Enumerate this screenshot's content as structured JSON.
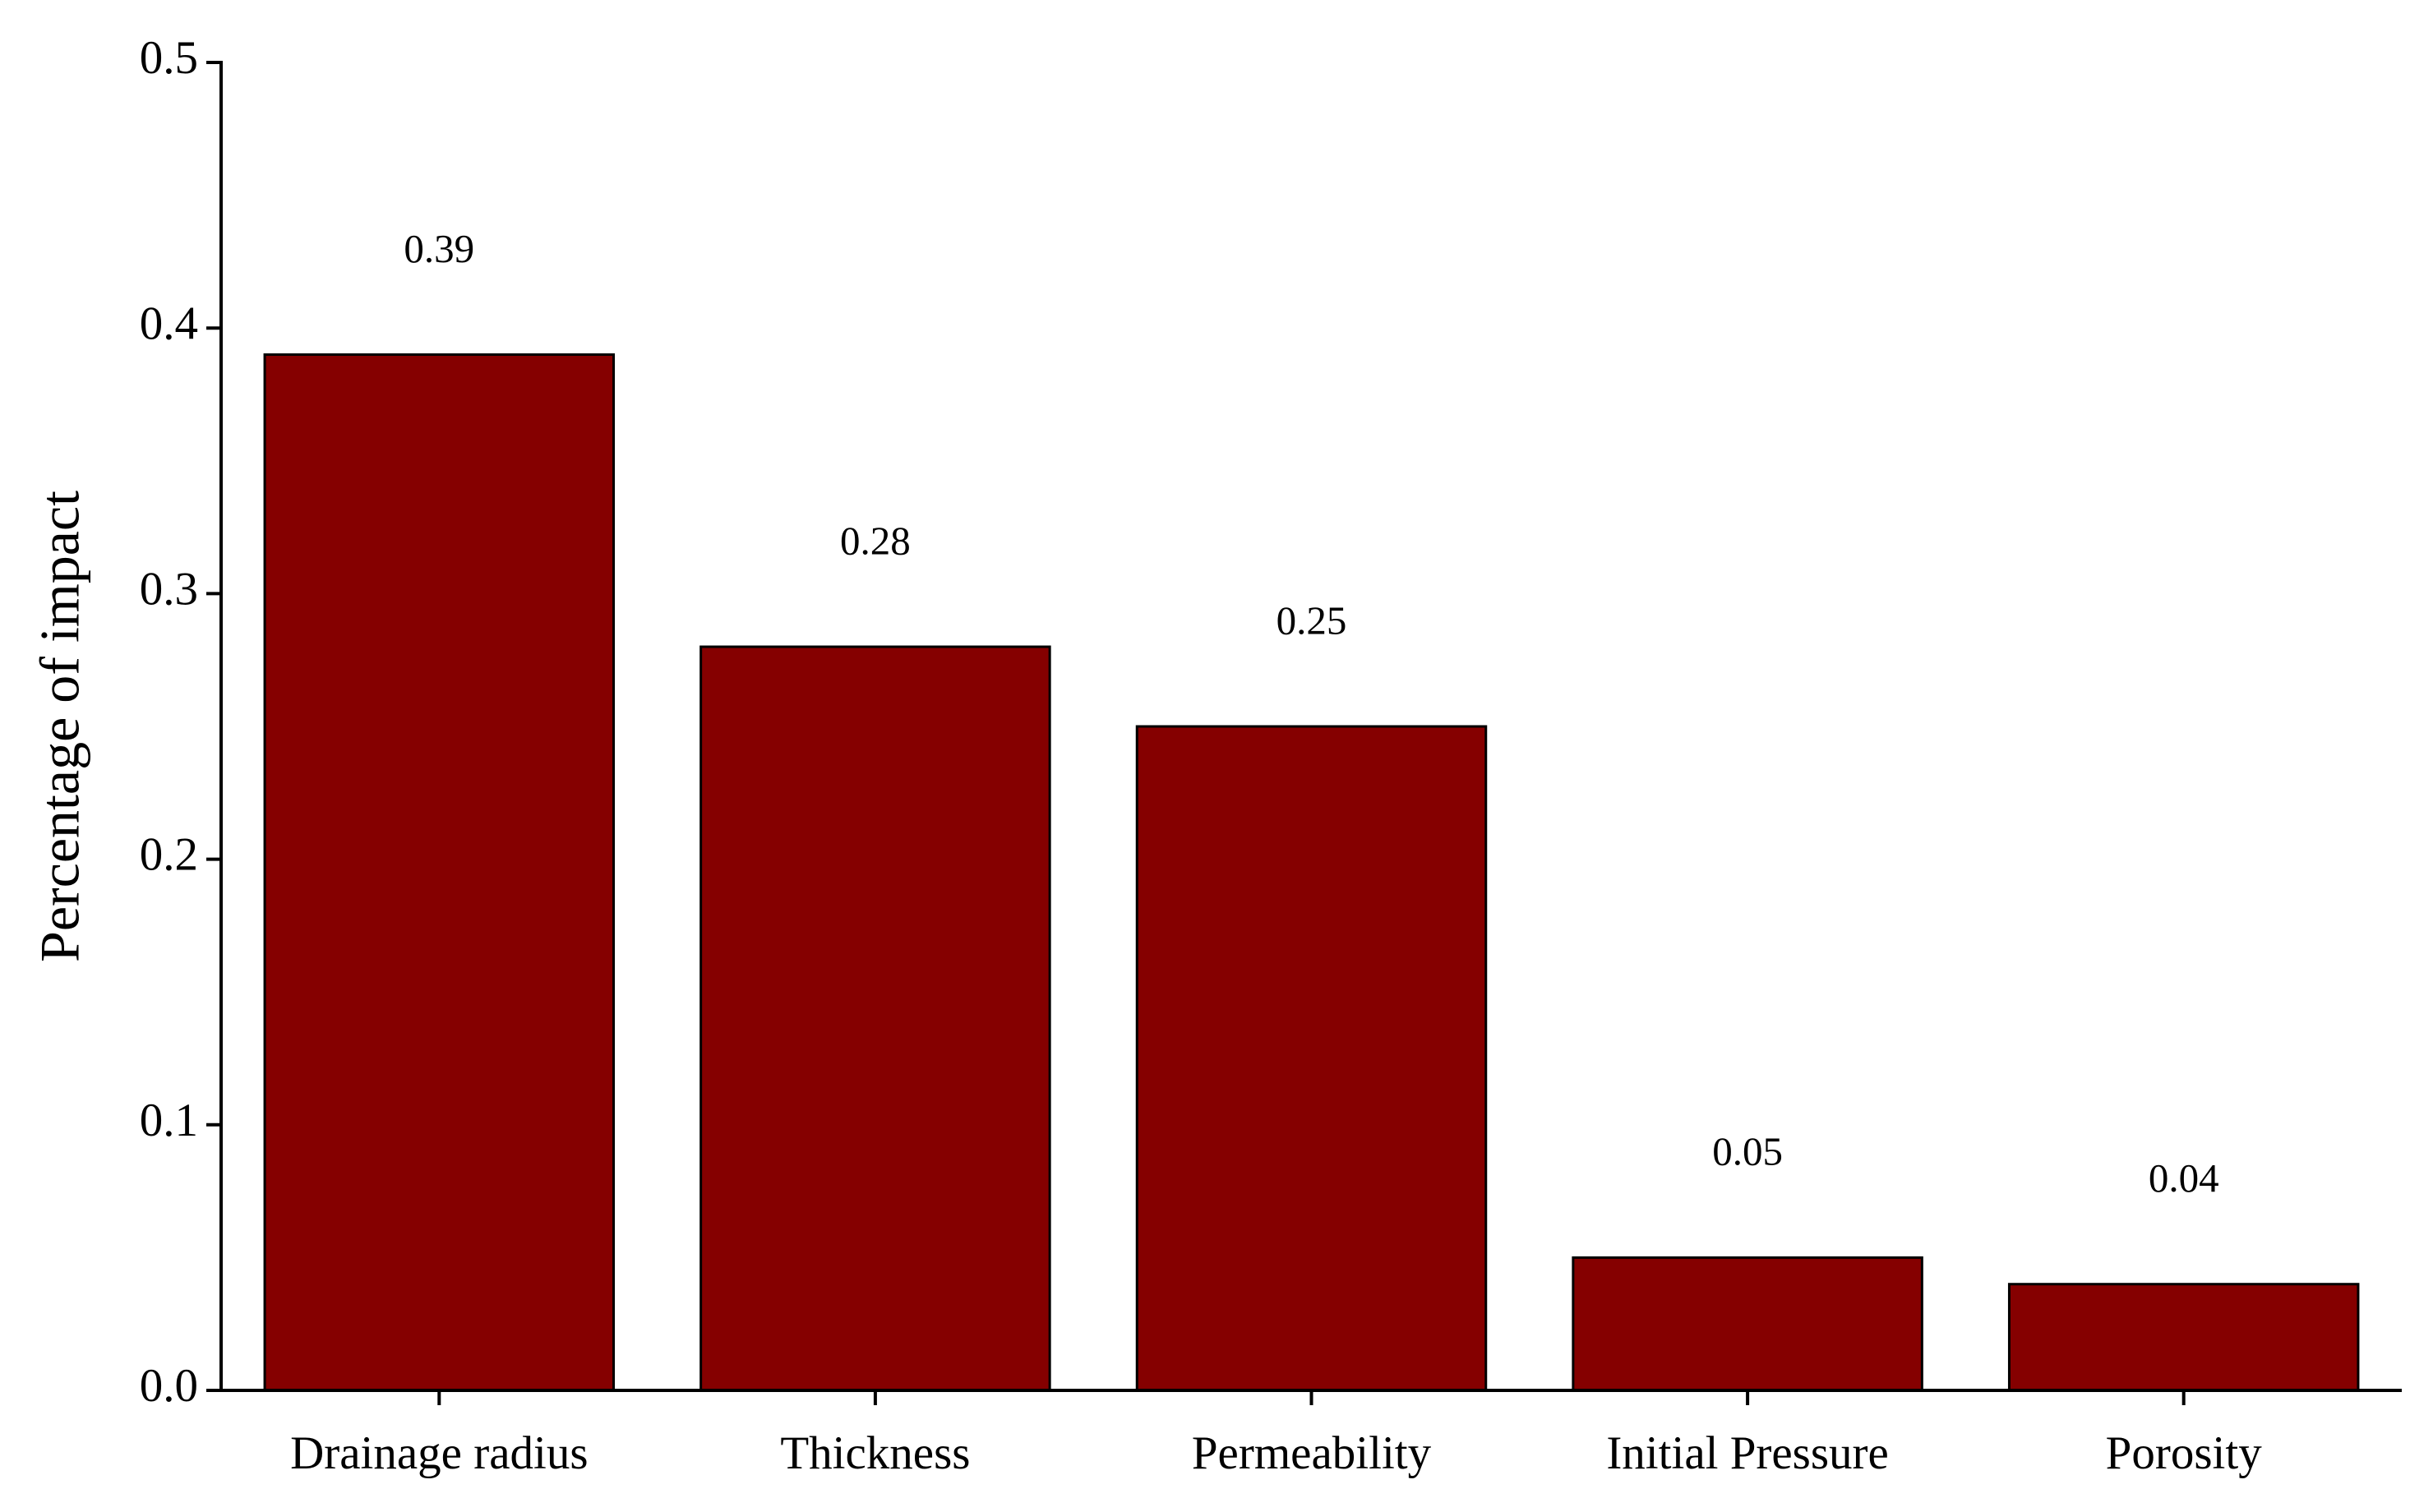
{
  "chart_data": {
    "type": "bar",
    "y_label": "Percentage of impact",
    "categories": [
      "Drainage radius",
      "Thickness",
      "Permeability",
      "Initial Pressure",
      "Porosity"
    ],
    "values": [
      0.39,
      0.28,
      0.25,
      0.05,
      0.04
    ],
    "color": "#850000",
    "ylim": [
      0,
      0.5
    ],
    "yticks": [
      {
        "value": 0,
        "label": "0.0"
      },
      0.1,
      0.2,
      0.3,
      0.4,
      0.5
    ],
    "grid": false
  }
}
